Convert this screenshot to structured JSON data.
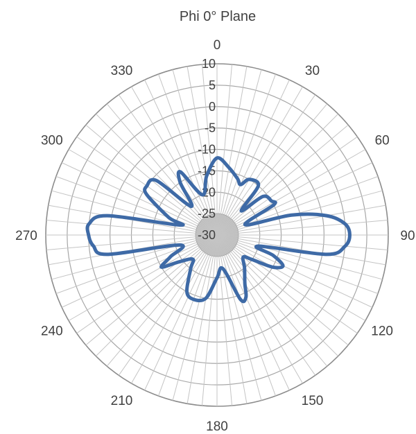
{
  "chart_data": {
    "type": "polar-line",
    "title": "Phi 0° Plane",
    "angle_ticks": [
      "0",
      "30",
      "60",
      "90",
      "120",
      "150",
      "180",
      "210",
      "240",
      "270",
      "300",
      "330"
    ],
    "angle_direction": "clockwise",
    "angle_zero": "top",
    "radial_ticks": [
      "10",
      "5",
      "0",
      "-5",
      "-10",
      "-15",
      "-20",
      "-25",
      "-30"
    ],
    "rlim": [
      -30,
      10
    ],
    "grid": true,
    "angular_gridline_step_deg": 5,
    "series": [
      {
        "color": "#3e6aa6",
        "points": [
          [
            0,
            -12
          ],
          [
            10,
            -14
          ],
          [
            20,
            -16
          ],
          [
            25,
            -17
          ],
          [
            30,
            -15
          ],
          [
            40,
            -15
          ],
          [
            45,
            -22
          ],
          [
            50,
            -16
          ],
          [
            58,
            -15
          ],
          [
            62,
            -15
          ],
          [
            70,
            -23
          ],
          [
            75,
            -12
          ],
          [
            80,
            -4
          ],
          [
            85,
            0
          ],
          [
            90,
            1
          ],
          [
            95,
            0
          ],
          [
            100,
            -4
          ],
          [
            105,
            -20
          ],
          [
            110,
            -16
          ],
          [
            115,
            -13
          ],
          [
            120,
            -15
          ],
          [
            125,
            -20
          ],
          [
            130,
            -22
          ],
          [
            140,
            -20
          ],
          [
            150,
            -17
          ],
          [
            155,
            -14
          ],
          [
            160,
            -14
          ],
          [
            170,
            -22
          ],
          [
            180,
            -20
          ],
          [
            190,
            -15
          ],
          [
            200,
            -14
          ],
          [
            208,
            -15
          ],
          [
            218,
            -20
          ],
          [
            225,
            -22
          ],
          [
            235,
            -19
          ],
          [
            240,
            -15
          ],
          [
            245,
            -18
          ],
          [
            255,
            -21
          ],
          [
            260,
            -4
          ],
          [
            265,
            -1
          ],
          [
            270,
            0
          ],
          [
            275,
            0
          ],
          [
            280,
            -4
          ],
          [
            285,
            -21
          ],
          [
            290,
            -18
          ],
          [
            300,
            -11
          ],
          [
            305,
            -10
          ],
          [
            312,
            -11
          ],
          [
            318,
            -21
          ],
          [
            325,
            -15
          ],
          [
            330,
            -13
          ],
          [
            340,
            -20
          ],
          [
            350,
            -16
          ],
          [
            360,
            -12
          ]
        ]
      }
    ]
  }
}
